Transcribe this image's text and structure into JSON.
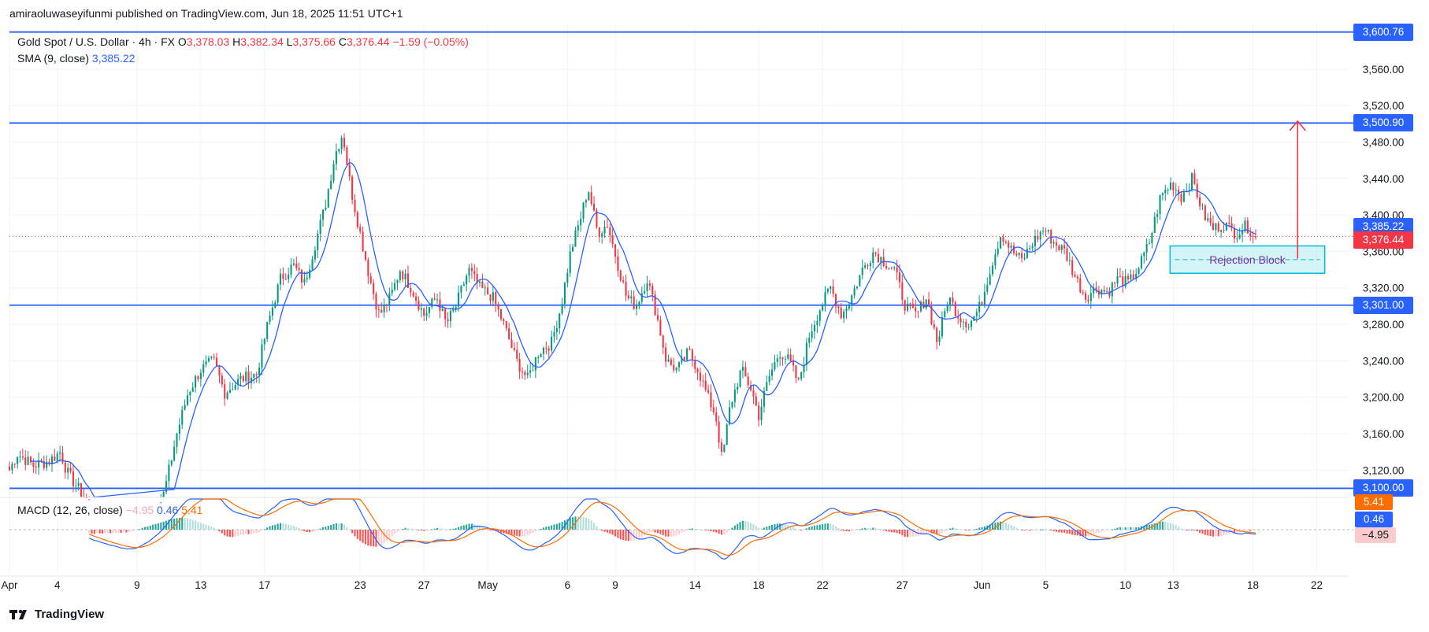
{
  "header": {
    "publisher_line": "amiraoluwaseyifunmi published on TradingView.com, Jun 18, 2025 11:51 UTC+1"
  },
  "legend": {
    "symbol": "Gold Spot / U.S. Dollar · 4h · FX",
    "open_label": "O",
    "open": "3,378.03",
    "high_label": "H",
    "high": "3,382.34",
    "low_label": "L",
    "low": "3,375.66",
    "close_label": "C",
    "close": "3,376.44",
    "change": "−1.59 (−0.05%)",
    "sma_label": "SMA (9, close)",
    "sma_value": "3,385.22",
    "macd_label": "MACD (12, 26, close)",
    "macd_hist": "−4.95",
    "macd_line": "0.46",
    "macd_signal": "5.41"
  },
  "price_tags": {
    "line_3600": "3,600.76",
    "line_3500": "3,500.90",
    "sma": "3,385.22",
    "last": "3,376.44",
    "line_3301": "3,301.00",
    "line_3100": "3,100.00"
  },
  "macd_tags": {
    "signal": "5.41",
    "macd": "0.46",
    "hist": "−4.95"
  },
  "annotation": {
    "rejection_block": "Rejection Block"
  },
  "footer": {
    "brand": "TradingView"
  },
  "colors": {
    "up": "#089981",
    "down": "#f23645",
    "level_line": "#2962ff",
    "sma": "#2962ff",
    "macd_line": "#2962ff",
    "signal_line": "#ff6d00",
    "zone_fill": "#b2ebf2",
    "zone_border": "#00bcd4",
    "arrow": "#f23645"
  },
  "chart_data": {
    "type": "candlestick",
    "title": "Gold Spot / U.S. Dollar · 4h · FX",
    "ylim": [
      3090,
      3610
    ],
    "y_ticks": [
      3120,
      3160,
      3200,
      3240,
      3280,
      3320,
      3360,
      3400,
      3440,
      3480,
      3520,
      3560
    ],
    "y_tick_labels": [
      "3,120.00",
      "3,160.00",
      "3,200.00",
      "3,240.00",
      "3,280.00",
      "3,320.00",
      "3,360.00",
      "3,400.00",
      "3,440.00",
      "3,480.00",
      "3,520.00",
      "3,560.00"
    ],
    "x_labels": [
      {
        "label": "Apr",
        "day": 0
      },
      {
        "label": "4",
        "day": 3
      },
      {
        "label": "9",
        "day": 8
      },
      {
        "label": "13",
        "day": 12
      },
      {
        "label": "17",
        "day": 16
      },
      {
        "label": "23",
        "day": 22
      },
      {
        "label": "27",
        "day": 26
      },
      {
        "label": "May",
        "day": 30
      },
      {
        "label": "6",
        "day": 35
      },
      {
        "label": "9",
        "day": 38
      },
      {
        "label": "14",
        "day": 43
      },
      {
        "label": "18",
        "day": 47
      },
      {
        "label": "22",
        "day": 51
      },
      {
        "label": "27",
        "day": 56
      },
      {
        "label": "Jun",
        "day": 61
      },
      {
        "label": "5",
        "day": 65
      },
      {
        "label": "10",
        "day": 70
      },
      {
        "label": "13",
        "day": 73
      },
      {
        "label": "18",
        "day": 78
      },
      {
        "label": "22",
        "day": 82
      }
    ],
    "horizontal_levels": [
      3600.76,
      3500.9,
      3301.0,
      3100.0
    ],
    "last_price": 3376.44,
    "sma_last": 3385.22,
    "rejection_block": [
      3336,
      3366
    ],
    "target_arrow": {
      "from": 3352,
      "to": 3503,
      "day": 80.8
    },
    "close_path": [
      {
        "day": 0,
        "price": 3120
      },
      {
        "day": 0.5,
        "price": 3138
      },
      {
        "day": 1.5,
        "price": 3125
      },
      {
        "day": 2.5,
        "price": 3130
      },
      {
        "day": 3.2,
        "price": 3140
      },
      {
        "day": 3.6,
        "price": 3118
      },
      {
        "day": 4.5,
        "price": 3095
      },
      {
        "day": 6,
        "price": 3060
      },
      {
        "day": 7.5,
        "price": 3020
      },
      {
        "day": 8.5,
        "price": 3040
      },
      {
        "day": 9.7,
        "price": 3095
      },
      {
        "day": 10.5,
        "price": 3160
      },
      {
        "day": 11.2,
        "price": 3205
      },
      {
        "day": 12,
        "price": 3230
      },
      {
        "day": 12.8,
        "price": 3240
      },
      {
        "day": 13.5,
        "price": 3205
      },
      {
        "day": 14.5,
        "price": 3220
      },
      {
        "day": 15.5,
        "price": 3225
      },
      {
        "day": 16.2,
        "price": 3280
      },
      {
        "day": 17,
        "price": 3330
      },
      {
        "day": 17.8,
        "price": 3345
      },
      {
        "day": 18.5,
        "price": 3325
      },
      {
        "day": 19.2,
        "price": 3370
      },
      {
        "day": 19.8,
        "price": 3410
      },
      {
        "day": 20.4,
        "price": 3465
      },
      {
        "day": 20.9,
        "price": 3490
      },
      {
        "day": 21.4,
        "price": 3430
      },
      {
        "day": 22,
        "price": 3380
      },
      {
        "day": 22.6,
        "price": 3330
      },
      {
        "day": 23.2,
        "price": 3290
      },
      {
        "day": 23.9,
        "price": 3310
      },
      {
        "day": 24.5,
        "price": 3340
      },
      {
        "day": 25.2,
        "price": 3320
      },
      {
        "day": 26,
        "price": 3290
      },
      {
        "day": 26.8,
        "price": 3310
      },
      {
        "day": 27.4,
        "price": 3280
      },
      {
        "day": 28,
        "price": 3300
      },
      {
        "day": 28.8,
        "price": 3340
      },
      {
        "day": 29.5,
        "price": 3320
      },
      {
        "day": 30.3,
        "price": 3310
      },
      {
        "day": 31,
        "price": 3280
      },
      {
        "day": 31.8,
        "price": 3240
      },
      {
        "day": 32.5,
        "price": 3220
      },
      {
        "day": 33.2,
        "price": 3250
      },
      {
        "day": 34,
        "price": 3260
      },
      {
        "day": 34.6,
        "price": 3300
      },
      {
        "day": 35.2,
        "price": 3360
      },
      {
        "day": 35.8,
        "price": 3395
      },
      {
        "day": 36.3,
        "price": 3430
      },
      {
        "day": 36.9,
        "price": 3380
      },
      {
        "day": 37.5,
        "price": 3390
      },
      {
        "day": 38.1,
        "price": 3350
      },
      {
        "day": 38.7,
        "price": 3310
      },
      {
        "day": 39.3,
        "price": 3300
      },
      {
        "day": 40,
        "price": 3330
      },
      {
        "day": 40.6,
        "price": 3290
      },
      {
        "day": 41.2,
        "price": 3240
      },
      {
        "day": 41.9,
        "price": 3230
      },
      {
        "day": 42.6,
        "price": 3250
      },
      {
        "day": 43.2,
        "price": 3230
      },
      {
        "day": 43.8,
        "price": 3200
      },
      {
        "day": 44.3,
        "price": 3180
      },
      {
        "day": 44.7,
        "price": 3130
      },
      {
        "day": 45.2,
        "price": 3190
      },
      {
        "day": 45.9,
        "price": 3230
      },
      {
        "day": 46.5,
        "price": 3210
      },
      {
        "day": 47,
        "price": 3180
      },
      {
        "day": 47.6,
        "price": 3220
      },
      {
        "day": 48.3,
        "price": 3250
      },
      {
        "day": 48.9,
        "price": 3240
      },
      {
        "day": 49.5,
        "price": 3215
      },
      {
        "day": 50.2,
        "price": 3270
      },
      {
        "day": 50.9,
        "price": 3300
      },
      {
        "day": 51.5,
        "price": 3320
      },
      {
        "day": 52.2,
        "price": 3290
      },
      {
        "day": 52.8,
        "price": 3310
      },
      {
        "day": 53.5,
        "price": 3340
      },
      {
        "day": 54.2,
        "price": 3360
      },
      {
        "day": 54.8,
        "price": 3350
      },
      {
        "day": 55.5,
        "price": 3340
      },
      {
        "day": 56.2,
        "price": 3300
      },
      {
        "day": 56.9,
        "price": 3290
      },
      {
        "day": 57.5,
        "price": 3310
      },
      {
        "day": 58.2,
        "price": 3260
      },
      {
        "day": 58.9,
        "price": 3310
      },
      {
        "day": 59.5,
        "price": 3290
      },
      {
        "day": 60.2,
        "price": 3280
      },
      {
        "day": 60.9,
        "price": 3300
      },
      {
        "day": 61.5,
        "price": 3340
      },
      {
        "day": 62.2,
        "price": 3380
      },
      {
        "day": 62.9,
        "price": 3360
      },
      {
        "day": 63.5,
        "price": 3350
      },
      {
        "day": 64.2,
        "price": 3370
      },
      {
        "day": 64.9,
        "price": 3385
      },
      {
        "day": 65.5,
        "price": 3370
      },
      {
        "day": 66.2,
        "price": 3360
      },
      {
        "day": 66.9,
        "price": 3330
      },
      {
        "day": 67.5,
        "price": 3310
      },
      {
        "day": 68.2,
        "price": 3320
      },
      {
        "day": 68.9,
        "price": 3315
      },
      {
        "day": 69.5,
        "price": 3330
      },
      {
        "day": 70.2,
        "price": 3325
      },
      {
        "day": 70.9,
        "price": 3345
      },
      {
        "day": 71.5,
        "price": 3370
      },
      {
        "day": 72.2,
        "price": 3420
      },
      {
        "day": 72.9,
        "price": 3435
      },
      {
        "day": 73.5,
        "price": 3420
      },
      {
        "day": 74.2,
        "price": 3440
      },
      {
        "day": 74.9,
        "price": 3400
      },
      {
        "day": 75.5,
        "price": 3385
      },
      {
        "day": 76.2,
        "price": 3390
      },
      {
        "day": 76.9,
        "price": 3380
      },
      {
        "day": 77.6,
        "price": 3388
      },
      {
        "day": 78.2,
        "price": 3376.44
      }
    ],
    "macd_panel": {
      "ylim": [
        -35,
        35
      ],
      "macd_last": 0.46,
      "signal_last": 5.41,
      "hist_last": -4.95
    }
  }
}
